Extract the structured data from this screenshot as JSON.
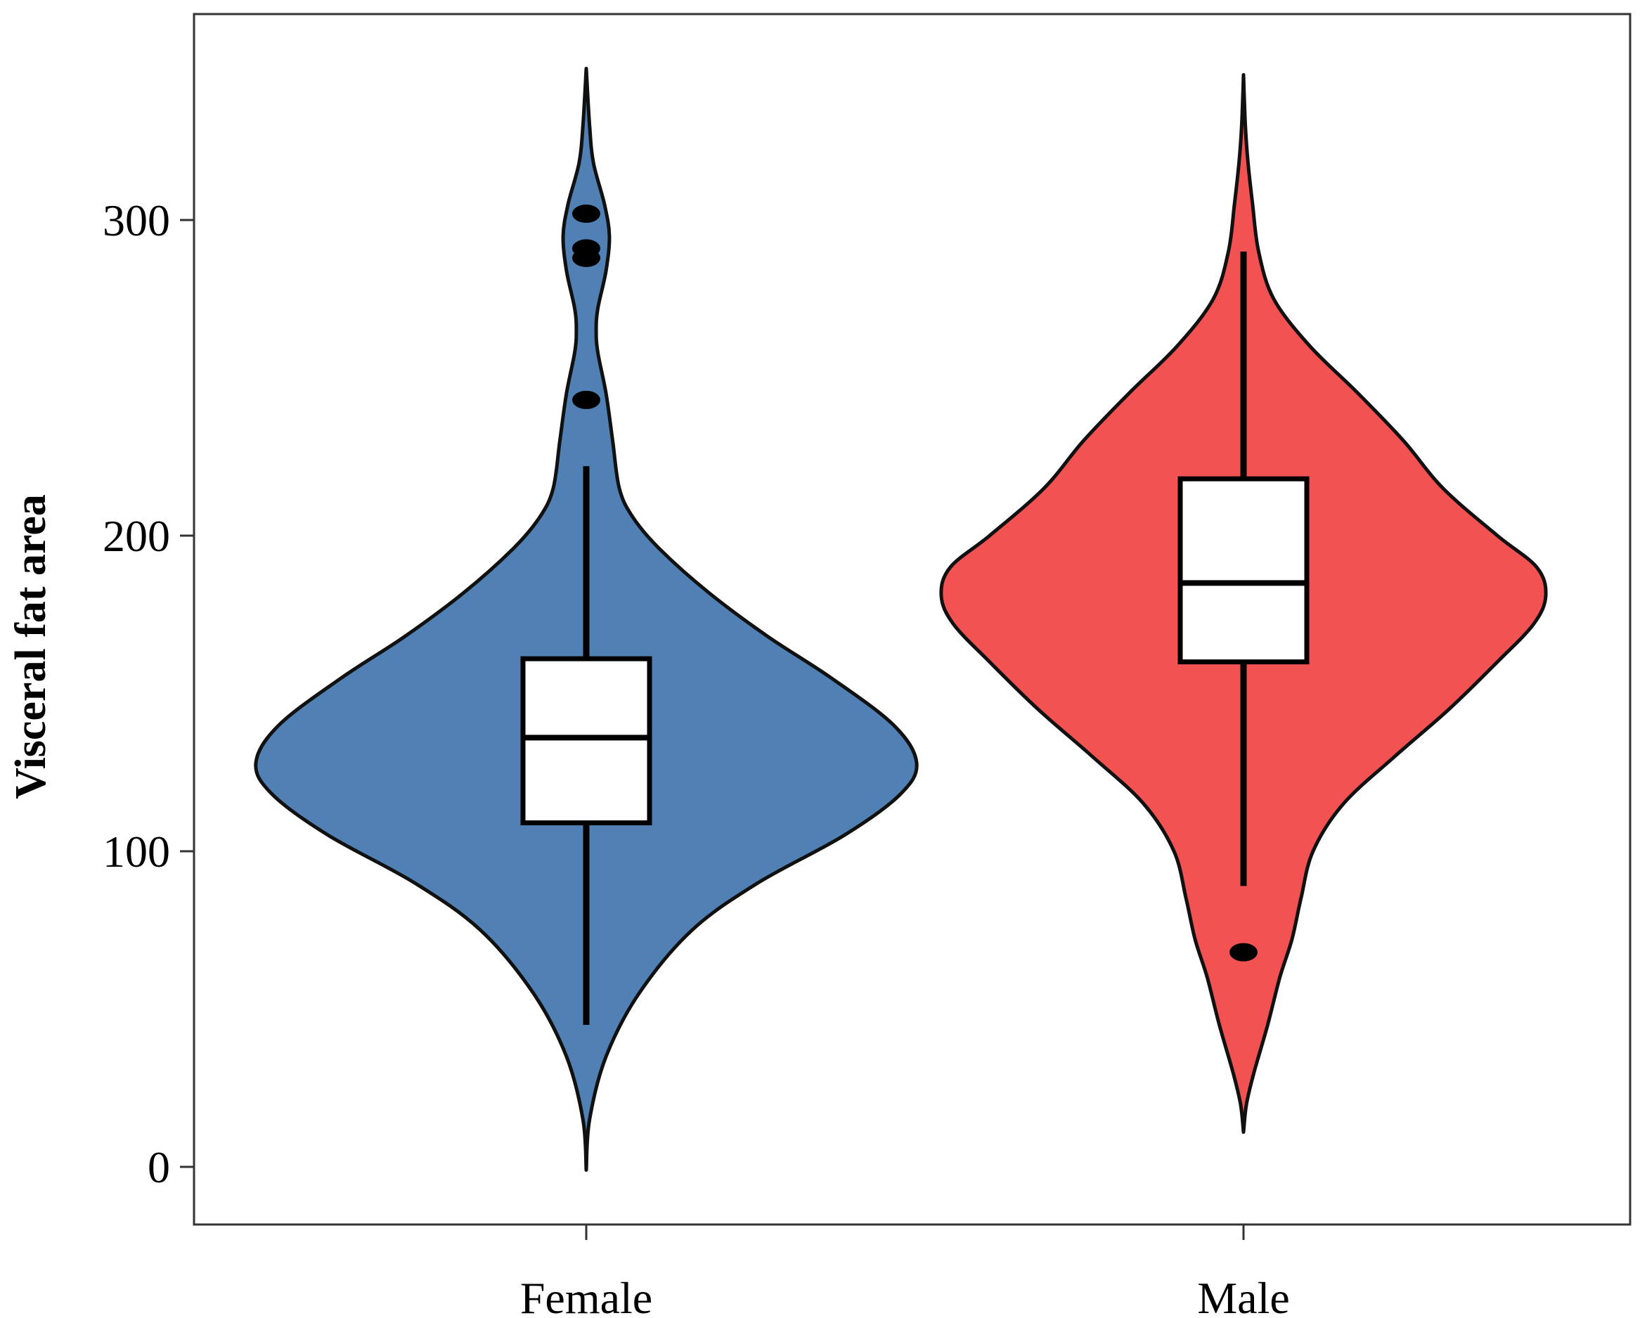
{
  "chart_data": {
    "type": "violin",
    "title": "",
    "xlabel": "",
    "ylabel": "Visceral fat area",
    "categories": [
      "Female",
      "Male"
    ],
    "yticks": [
      0,
      100,
      200,
      300
    ],
    "ylim": [
      -18,
      365
    ],
    "grid": false,
    "legend": "none",
    "colors": {
      "Female": "#5080b4",
      "Male": "#f25252"
    },
    "series": [
      {
        "category": "Female",
        "color": "#5080b4",
        "violin_range": [
          -1,
          348
        ],
        "density_profile": [
          [
            -1,
            0.0
          ],
          [
            15,
            0.01
          ],
          [
            35,
            0.06
          ],
          [
            55,
            0.16
          ],
          [
            75,
            0.32
          ],
          [
            90,
            0.52
          ],
          [
            105,
            0.78
          ],
          [
            118,
            0.95
          ],
          [
            128,
            1.0
          ],
          [
            140,
            0.93
          ],
          [
            155,
            0.74
          ],
          [
            168,
            0.55
          ],
          [
            182,
            0.37
          ],
          [
            196,
            0.22
          ],
          [
            206,
            0.14
          ],
          [
            215,
            0.1
          ],
          [
            230,
            0.08
          ],
          [
            245,
            0.06
          ],
          [
            258,
            0.035
          ],
          [
            265,
            0.03
          ],
          [
            272,
            0.035
          ],
          [
            284,
            0.06
          ],
          [
            295,
            0.07
          ],
          [
            305,
            0.055
          ],
          [
            318,
            0.022
          ],
          [
            330,
            0.01
          ],
          [
            348,
            0.0
          ]
        ],
        "box": {
          "whisker_low": 45,
          "q1": 109,
          "median": 136,
          "q3": 161,
          "whisker_high": 222
        },
        "outliers": [
          243,
          288,
          291,
          302
        ]
      },
      {
        "category": "Male",
        "color": "#f25252",
        "violin_range": [
          11,
          346
        ],
        "density_profile": [
          [
            11,
            0.0
          ],
          [
            20,
            0.01
          ],
          [
            30,
            0.035
          ],
          [
            45,
            0.08
          ],
          [
            60,
            0.12
          ],
          [
            72,
            0.16
          ],
          [
            85,
            0.19
          ],
          [
            100,
            0.23
          ],
          [
            115,
            0.33
          ],
          [
            130,
            0.5
          ],
          [
            145,
            0.68
          ],
          [
            160,
            0.84
          ],
          [
            172,
            0.96
          ],
          [
            181,
            1.0
          ],
          [
            190,
            0.97
          ],
          [
            200,
            0.84
          ],
          [
            215,
            0.66
          ],
          [
            230,
            0.53
          ],
          [
            245,
            0.38
          ],
          [
            260,
            0.22
          ],
          [
            275,
            0.1
          ],
          [
            290,
            0.05
          ],
          [
            305,
            0.03
          ],
          [
            318,
            0.015
          ],
          [
            330,
            0.006
          ],
          [
            346,
            0.0
          ]
        ],
        "box": {
          "whisker_low": 89,
          "q1": 160,
          "median": 185,
          "q3": 218,
          "whisker_high": 290
        },
        "outliers": [
          68
        ]
      }
    ]
  }
}
